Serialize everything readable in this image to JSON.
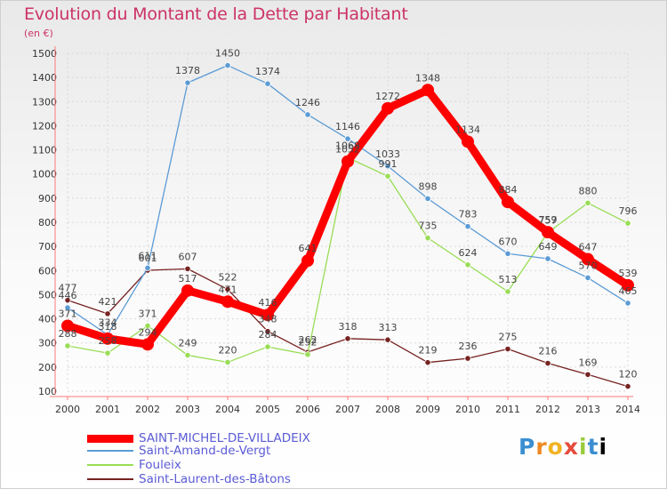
{
  "title": "Evolution du Montant de la Dette par Habitant",
  "subtitle": "(en €)",
  "logo_text": "Proxiti",
  "chart_data": {
    "type": "line",
    "x": [
      "2000",
      "2001",
      "2002",
      "2003",
      "2004",
      "2005",
      "2006",
      "2007",
      "2008",
      "2009",
      "2010",
      "2011",
      "2012",
      "2013",
      "2014"
    ],
    "ylim": [
      100,
      1500
    ],
    "yticks": [
      100,
      200,
      300,
      400,
      500,
      600,
      700,
      800,
      900,
      1000,
      1100,
      1200,
      1300,
      1400,
      1500
    ],
    "grid": true,
    "legend_position": "bottom-left",
    "series": [
      {
        "name": "SAINT-MICHEL-DE-VILLADEIX",
        "color": "#ff0000",
        "values": [
          371,
          318,
          294,
          517,
          471,
          416,
          641,
          1052,
          1272,
          1348,
          1134,
          884,
          759,
          647,
          539
        ]
      },
      {
        "name": "Saint-Amand-de-Vergt",
        "color": "#5b9bd5",
        "values": [
          446,
          334,
          611,
          1378,
          1450,
          1374,
          1246,
          1146,
          1033,
          898,
          783,
          670,
          649,
          570,
          465
        ]
      },
      {
        "name": "Fouleix",
        "color": "#99dd55",
        "values": [
          288,
          258,
          371,
          249,
          220,
          284,
          252,
          1068,
          991,
          735,
          624,
          513,
          757,
          880,
          796
        ]
      },
      {
        "name": "Saint-Laurent-des-Bâtons",
        "color": "#772222",
        "values": [
          477,
          421,
          601,
          607,
          522,
          348,
          262,
          318,
          313,
          219,
          236,
          275,
          216,
          169,
          120
        ]
      }
    ]
  }
}
